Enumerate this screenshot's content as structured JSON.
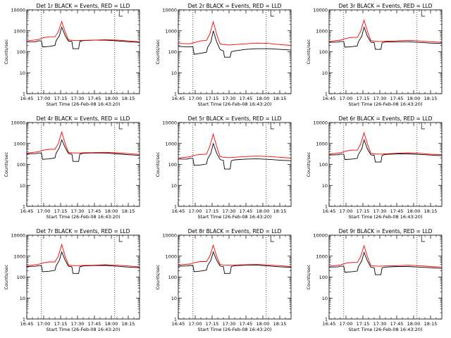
{
  "figure": {
    "xlabel": "Start Time (26-Feb-08 16:43:20)",
    "ylabel": "Counts/sec",
    "series_legend": {
      "black": "Events",
      "red": "LLD"
    },
    "colors": {
      "events": "#000000",
      "lld": "#ff0000",
      "axes": "#000000",
      "background": "#ffffff"
    },
    "time_ticks": [
      "16:45",
      "17:00",
      "17:15",
      "17:30",
      "17:45",
      "18:00",
      "18:15"
    ],
    "time_tick_minutes": [
      0,
      15,
      30,
      45,
      60,
      75,
      90
    ],
    "x_range_minutes": [
      0,
      100
    ],
    "ylog_range": [
      1,
      10000
    ],
    "ytick_labels": [
      "1",
      "10",
      "100",
      "1000",
      "10000"
    ],
    "dotted_lines_minutes": [
      13,
      78
    ],
    "bracket_marker_minute": [
      82,
      85
    ]
  },
  "chart_data": [
    {
      "type": "line",
      "title": "Det 1r BLACK = Events, RED = LLD",
      "series": [
        {
          "name": "Events",
          "x": [
            0,
            8,
            9,
            10,
            13,
            14,
            20,
            25,
            26,
            29,
            31,
            34,
            37,
            38,
            40,
            41,
            46,
            47,
            50,
            60,
            70,
            80,
            90,
            100
          ],
          "values": [
            300,
            300,
            320,
            330,
            330,
            170,
            180,
            200,
            330,
            600,
            1500,
            600,
            320,
            320,
            310,
            140,
            140,
            310,
            340,
            360,
            360,
            330,
            300,
            280
          ]
        },
        {
          "name": "LLD",
          "x": [
            0,
            10,
            15,
            20,
            25,
            28,
            31,
            34,
            37,
            40,
            45,
            50,
            60,
            70,
            80,
            90,
            100
          ],
          "values": [
            330,
            380,
            470,
            520,
            520,
            900,
            2800,
            900,
            370,
            350,
            340,
            350,
            360,
            380,
            360,
            330,
            300
          ]
        }
      ]
    },
    {
      "type": "line",
      "title": "Det 2r BLACK = Events, RED = LLD",
      "series": [
        {
          "name": "Events",
          "x": [
            0,
            8,
            9,
            10,
            13,
            14,
            20,
            25,
            26,
            29,
            31,
            34,
            37,
            38,
            40,
            41,
            46,
            47,
            50,
            60,
            70,
            80,
            90,
            100
          ],
          "values": [
            180,
            170,
            170,
            170,
            170,
            75,
            85,
            95,
            160,
            300,
            1000,
            300,
            130,
            120,
            110,
            55,
            55,
            100,
            110,
            130,
            140,
            140,
            130,
            120
          ]
        },
        {
          "name": "LLD",
          "x": [
            0,
            10,
            15,
            20,
            25,
            28,
            31,
            34,
            37,
            40,
            45,
            50,
            60,
            70,
            80,
            90,
            100
          ],
          "values": [
            250,
            240,
            280,
            330,
            350,
            700,
            2700,
            700,
            240,
            220,
            210,
            220,
            240,
            260,
            250,
            220,
            200
          ]
        }
      ]
    },
    {
      "type": "line",
      "title": "Det 3r BLACK = Events, RED = LLD",
      "series": [
        {
          "name": "Events",
          "x": [
            0,
            8,
            9,
            10,
            13,
            14,
            20,
            25,
            26,
            29,
            31,
            34,
            37,
            38,
            40,
            41,
            46,
            47,
            50,
            60,
            70,
            80,
            90,
            100
          ],
          "values": [
            280,
            290,
            300,
            310,
            310,
            165,
            175,
            190,
            300,
            550,
            1500,
            550,
            290,
            280,
            270,
            130,
            130,
            270,
            290,
            300,
            300,
            280,
            260,
            250
          ]
        },
        {
          "name": "LLD",
          "x": [
            0,
            10,
            15,
            20,
            25,
            28,
            31,
            34,
            37,
            40,
            45,
            50,
            60,
            70,
            80,
            90,
            100
          ],
          "values": [
            310,
            360,
            440,
            480,
            480,
            950,
            3200,
            950,
            340,
            320,
            310,
            320,
            330,
            350,
            330,
            300,
            280
          ]
        }
      ]
    },
    {
      "type": "line",
      "title": "Det 4r BLACK = Events, RED = LLD",
      "series": [
        {
          "name": "Events",
          "x": [
            0,
            8,
            9,
            10,
            13,
            14,
            20,
            25,
            26,
            29,
            31,
            34,
            37,
            38,
            40,
            41,
            46,
            47,
            50,
            60,
            70,
            80,
            90,
            100
          ],
          "values": [
            320,
            330,
            340,
            350,
            350,
            175,
            185,
            205,
            340,
            650,
            1500,
            650,
            330,
            320,
            310,
            140,
            140,
            310,
            340,
            360,
            350,
            320,
            290,
            270
          ]
        },
        {
          "name": "LLD",
          "x": [
            0,
            10,
            15,
            20,
            25,
            28,
            31,
            34,
            37,
            40,
            45,
            50,
            60,
            70,
            80,
            90,
            100
          ],
          "values": [
            350,
            400,
            480,
            530,
            530,
            1000,
            3500,
            1000,
            380,
            360,
            350,
            360,
            370,
            380,
            360,
            330,
            300
          ]
        }
      ]
    },
    {
      "type": "line",
      "title": "Det 5r BLACK = Events, RED = LLD",
      "series": [
        {
          "name": "Events",
          "x": [
            0,
            8,
            9,
            10,
            13,
            14,
            20,
            25,
            26,
            29,
            31,
            34,
            37,
            38,
            40,
            41,
            46,
            47,
            50,
            60,
            70,
            80,
            90,
            100
          ],
          "values": [
            180,
            180,
            190,
            195,
            195,
            90,
            95,
            105,
            180,
            350,
            1000,
            350,
            175,
            165,
            155,
            60,
            60,
            150,
            165,
            180,
            185,
            175,
            160,
            150
          ]
        },
        {
          "name": "LLD",
          "x": [
            0,
            10,
            15,
            20,
            25,
            28,
            31,
            34,
            37,
            40,
            45,
            50,
            60,
            70,
            80,
            90,
            100
          ],
          "values": [
            200,
            230,
            280,
            300,
            310,
            750,
            2800,
            750,
            240,
            220,
            210,
            220,
            240,
            250,
            240,
            220,
            200
          ]
        }
      ]
    },
    {
      "type": "line",
      "title": "Det 6r BLACK = Events, RED = LLD",
      "series": [
        {
          "name": "Events",
          "x": [
            0,
            8,
            9,
            10,
            13,
            14,
            20,
            25,
            26,
            29,
            31,
            34,
            37,
            38,
            40,
            41,
            46,
            47,
            50,
            60,
            70,
            80,
            90,
            100
          ],
          "values": [
            280,
            290,
            300,
            310,
            310,
            170,
            180,
            195,
            300,
            550,
            1500,
            550,
            290,
            280,
            270,
            130,
            130,
            270,
            300,
            320,
            320,
            300,
            280,
            260
          ]
        },
        {
          "name": "LLD",
          "x": [
            0,
            10,
            15,
            20,
            25,
            28,
            31,
            34,
            37,
            40,
            45,
            50,
            60,
            70,
            80,
            90,
            100
          ],
          "values": [
            310,
            360,
            440,
            480,
            480,
            950,
            3200,
            950,
            340,
            320,
            310,
            320,
            340,
            360,
            340,
            310,
            290
          ]
        }
      ]
    },
    {
      "type": "line",
      "title": "Det 7r BLACK = Events, RED = LLD",
      "series": [
        {
          "name": "Events",
          "x": [
            0,
            8,
            9,
            10,
            13,
            14,
            20,
            25,
            26,
            29,
            31,
            34,
            37,
            38,
            40,
            41,
            46,
            47,
            50,
            60,
            70,
            80,
            90,
            100
          ],
          "values": [
            320,
            330,
            340,
            350,
            350,
            180,
            190,
            210,
            340,
            650,
            1600,
            650,
            330,
            320,
            310,
            150,
            150,
            310,
            340,
            360,
            360,
            330,
            300,
            280
          ]
        },
        {
          "name": "LLD",
          "x": [
            0,
            10,
            15,
            20,
            25,
            28,
            31,
            34,
            37,
            40,
            45,
            50,
            60,
            70,
            80,
            90,
            100
          ],
          "values": [
            350,
            400,
            480,
            530,
            530,
            1000,
            3600,
            1000,
            380,
            360,
            350,
            360,
            370,
            390,
            370,
            340,
            310
          ]
        }
      ]
    },
    {
      "type": "line",
      "title": "Det 8r BLACK = Events, RED = LLD",
      "series": [
        {
          "name": "Events",
          "x": [
            0,
            8,
            9,
            10,
            13,
            14,
            20,
            25,
            26,
            29,
            31,
            34,
            37,
            38,
            40,
            41,
            46,
            47,
            50,
            60,
            70,
            80,
            90,
            100
          ],
          "values": [
            330,
            340,
            350,
            360,
            360,
            180,
            195,
            215,
            350,
            650,
            1600,
            650,
            340,
            330,
            320,
            150,
            150,
            320,
            350,
            370,
            370,
            340,
            310,
            290
          ]
        },
        {
          "name": "LLD",
          "x": [
            0,
            10,
            15,
            20,
            25,
            28,
            31,
            34,
            37,
            40,
            45,
            50,
            60,
            70,
            80,
            90,
            100
          ],
          "values": [
            370,
            420,
            500,
            550,
            550,
            1000,
            3300,
            1000,
            400,
            380,
            370,
            380,
            390,
            400,
            380,
            350,
            320
          ]
        }
      ]
    },
    {
      "type": "line",
      "title": "Det 9r BLACK = Events, RED = LLD",
      "series": [
        {
          "name": "Events",
          "x": [
            0,
            8,
            9,
            10,
            13,
            14,
            20,
            25,
            26,
            29,
            31,
            34,
            37,
            38,
            40,
            41,
            46,
            47,
            50,
            60,
            70,
            80,
            90,
            100
          ],
          "values": [
            300,
            310,
            320,
            330,
            330,
            170,
            180,
            195,
            320,
            600,
            1500,
            600,
            300,
            290,
            280,
            130,
            130,
            280,
            300,
            320,
            320,
            300,
            280,
            260
          ]
        },
        {
          "name": "LLD",
          "x": [
            0,
            10,
            15,
            20,
            25,
            28,
            31,
            34,
            37,
            40,
            45,
            50,
            60,
            70,
            80,
            90,
            100
          ],
          "values": [
            330,
            380,
            460,
            500,
            500,
            950,
            3100,
            950,
            360,
            340,
            330,
            340,
            350,
            370,
            350,
            320,
            300
          ]
        }
      ]
    }
  ]
}
